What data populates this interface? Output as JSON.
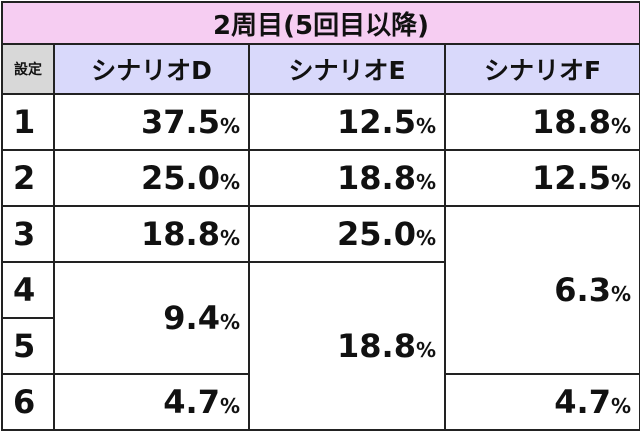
{
  "title": "2周目(5回目以降)",
  "header": {
    "setting": "設定",
    "columns": [
      "シナリオD",
      "シナリオE",
      "シナリオF"
    ]
  },
  "settings": [
    "1",
    "2",
    "3",
    "4",
    "5",
    "6"
  ],
  "columns": [
    {
      "cells": [
        {
          "value": "37.5",
          "unit": "%"
        },
        {
          "value": "25.0",
          "unit": "%"
        },
        {
          "value": "18.8",
          "unit": "%"
        },
        {
          "value": "9.4",
          "unit": "%"
        },
        {
          "value": "4.7",
          "unit": "%"
        }
      ]
    },
    {
      "cells": [
        {
          "value": "12.5",
          "unit": "%"
        },
        {
          "value": "18.8",
          "unit": "%"
        },
        {
          "value": "25.0",
          "unit": "%"
        },
        {
          "value": "18.8",
          "unit": "%"
        }
      ]
    },
    {
      "cells": [
        {
          "value": "18.8",
          "unit": "%"
        },
        {
          "value": "12.5",
          "unit": "%"
        },
        {
          "value": "6.3",
          "unit": "%"
        },
        {
          "value": "4.7",
          "unit": "%"
        }
      ]
    }
  ]
}
